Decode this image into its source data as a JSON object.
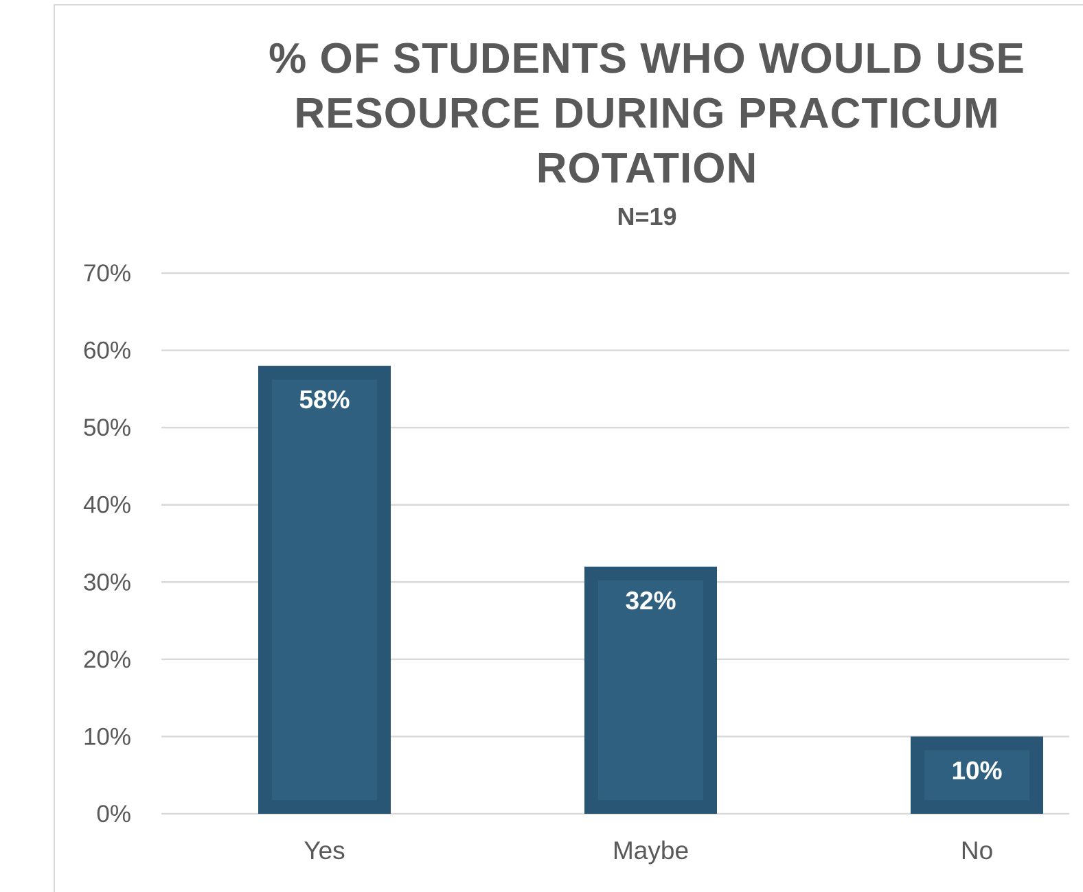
{
  "chart_data": {
    "type": "bar",
    "title_lines": [
      "% OF STUDENTS WHO WOULD USE",
      "RESOURCE DURING PRACTICUM",
      "ROTATION"
    ],
    "subtitle": "N=19",
    "categories": [
      "Yes",
      "Maybe",
      "No"
    ],
    "values": [
      58,
      32,
      10
    ],
    "data_labels": [
      "58%",
      "32%",
      "10%"
    ],
    "y_ticks": [
      "0%",
      "10%",
      "20%",
      "30%",
      "40%",
      "50%",
      "60%",
      "70%"
    ],
    "ylim": [
      0,
      70
    ],
    "xlabel": "",
    "ylabel": "",
    "grid": true,
    "legend": "none",
    "bar_color": "#2a5676"
  }
}
